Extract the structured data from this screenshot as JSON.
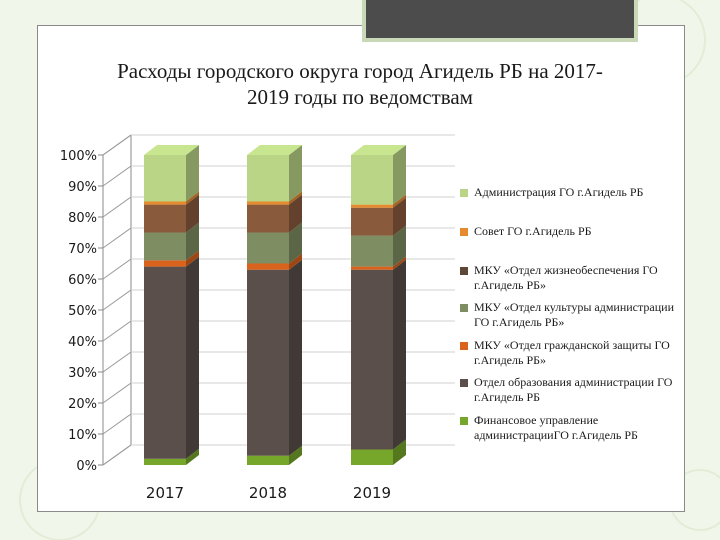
{
  "title": {
    "line1": "Расходы городского округа город Агидель РБ на 2017-",
    "line2": "2019 годы по ведомствам"
  },
  "colors": {
    "background": "#f1f6ea",
    "frame": "#ffffff",
    "tab": "#4c4c4c",
    "wall": "#8a8a8a"
  },
  "chart_data": {
    "type": "bar",
    "stacked": true,
    "percent": true,
    "three_d": true,
    "categories": [
      "2017",
      "2018",
      "2019"
    ],
    "y_ticks": [
      "0%",
      "10%",
      "20%",
      "30%",
      "40%",
      "50%",
      "60%",
      "70%",
      "80%",
      "90%",
      "100%"
    ],
    "ylim": [
      0,
      100
    ],
    "legend_position": "right",
    "series": [
      {
        "name": "Финансовое управление администрацииГО г.Агидель РБ",
        "color": "#76a72a",
        "values": [
          2,
          3,
          5
        ]
      },
      {
        "name": "Отдел образования администрации ГО г.Агидель РБ",
        "color": "#5a4f4a",
        "values": [
          62,
          60,
          58
        ]
      },
      {
        "name": "МКУ «Отдел гражданской защиты ГО г.Агидель РБ»",
        "color": "#d9631c",
        "values": [
          2,
          2,
          1
        ]
      },
      {
        "name": "МКУ «Отдел культуры администрации ГО г.Агидель РБ»",
        "color": "#7f8d62",
        "values": [
          9,
          10,
          10
        ]
      },
      {
        "name": "МКУ «Отдел жизнеобеспечения ГО г.Агидель РБ»",
        "color": "#8a5a3d",
        "values": [
          9,
          9,
          9
        ]
      },
      {
        "name": "Совет ГО г.Агидель РБ",
        "color": "#e58a2e",
        "values": [
          1,
          1,
          1
        ]
      },
      {
        "name": "Администрация ГО г.Агидель РБ",
        "color": "#b9d585",
        "values": [
          15,
          15,
          16
        ]
      }
    ]
  },
  "legend": [
    {
      "label": "Администрация ГО г.Агидель РБ",
      "color": "#b9d585"
    },
    {
      "label": "Совет ГО г.Агидель РБ",
      "color": "#e58a2e"
    },
    {
      "label": "МКУ  «Отдел жизнеобеспечения ГО г.Агидель РБ»",
      "color": "#5e4638"
    },
    {
      "label": "МКУ «Отдел культуры администрации ГО г.Агидель РБ»",
      "color": "#7f8d62"
    },
    {
      "label": "МКУ «Отдел гражданской защиты ГО г.Агидель РБ»",
      "color": "#d9631c"
    },
    {
      "label": "Отдел образования администрации ГО г.Агидель РБ",
      "color": "#5a4f4a"
    },
    {
      "label": "Финансовое управление администрацииГО г.Агидель РБ",
      "color": "#76a72a"
    }
  ]
}
